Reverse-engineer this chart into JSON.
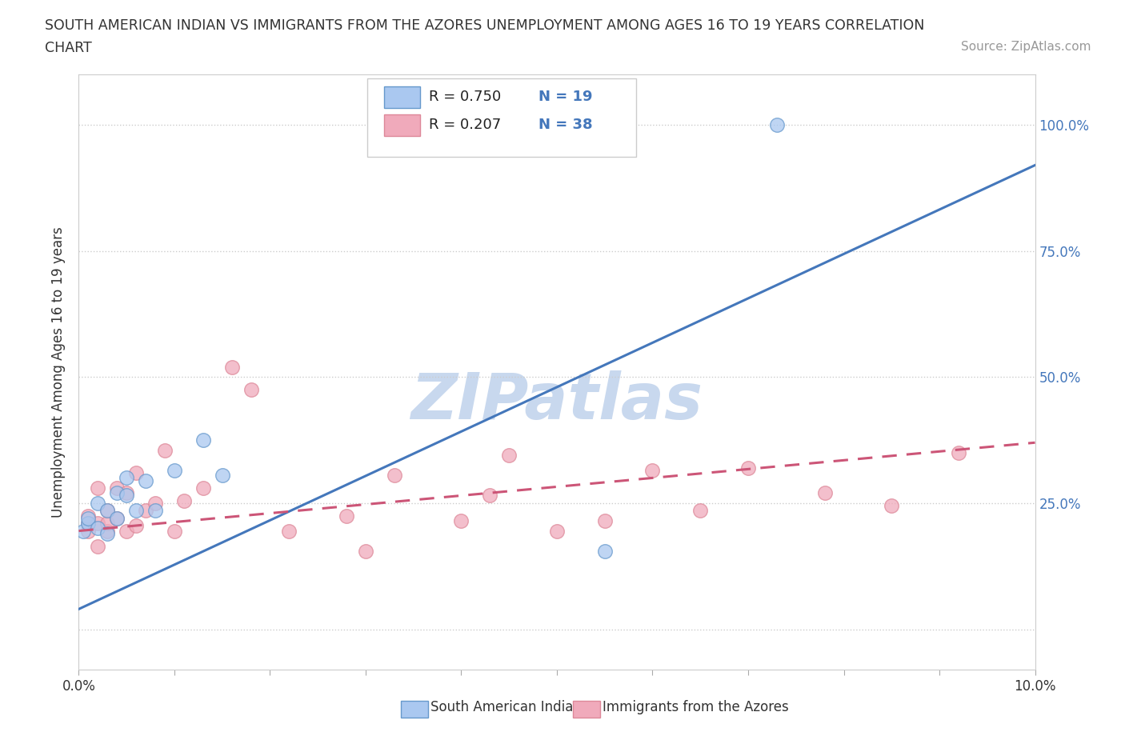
{
  "title_line1": "SOUTH AMERICAN INDIAN VS IMMIGRANTS FROM THE AZORES UNEMPLOYMENT AMONG AGES 16 TO 19 YEARS CORRELATION",
  "title_line2": "CHART",
  "source_text": "Source: ZipAtlas.com",
  "ylabel_text": "Unemployment Among Ages 16 to 19 years",
  "xlim": [
    0.0,
    0.1
  ],
  "ylim": [
    -0.08,
    1.1
  ],
  "x_ticks": [
    0.0,
    0.01,
    0.02,
    0.03,
    0.04,
    0.05,
    0.06,
    0.07,
    0.08,
    0.09,
    0.1
  ],
  "x_tick_labels": [
    "0.0%",
    "",
    "",
    "",
    "",
    "",
    "",
    "",
    "",
    "",
    "10.0%"
  ],
  "y_ticks": [
    0.0,
    0.25,
    0.5,
    0.75,
    1.0
  ],
  "y_tick_labels": [
    "",
    "25.0%",
    "50.0%",
    "75.0%",
    "100.0%"
  ],
  "grid_color": "#cccccc",
  "background_color": "#ffffff",
  "watermark_text": "ZIPatlas",
  "watermark_color": "#c8d8ee",
  "legend_r1": "R = 0.750",
  "legend_n1": "N = 19",
  "legend_r2": "R = 0.207",
  "legend_n2": "N = 38",
  "blue_color": "#aac8f0",
  "pink_color": "#f0aabb",
  "blue_line_color": "#4477bb",
  "pink_line_color": "#cc5577",
  "blue_edge_color": "#6699cc",
  "pink_edge_color": "#dd8899",
  "blue_scatter_x": [
    0.0005,
    0.001,
    0.001,
    0.002,
    0.002,
    0.003,
    0.003,
    0.004,
    0.004,
    0.005,
    0.005,
    0.006,
    0.007,
    0.008,
    0.01,
    0.013,
    0.015,
    0.055,
    0.073
  ],
  "blue_scatter_y": [
    0.195,
    0.21,
    0.22,
    0.2,
    0.25,
    0.19,
    0.235,
    0.27,
    0.22,
    0.265,
    0.3,
    0.235,
    0.295,
    0.235,
    0.315,
    0.375,
    0.305,
    0.155,
    1.0
  ],
  "pink_scatter_x": [
    0.001,
    0.001,
    0.001,
    0.002,
    0.002,
    0.002,
    0.003,
    0.003,
    0.003,
    0.004,
    0.004,
    0.005,
    0.005,
    0.006,
    0.006,
    0.007,
    0.008,
    0.009,
    0.01,
    0.011,
    0.013,
    0.016,
    0.018,
    0.022,
    0.028,
    0.03,
    0.033,
    0.04,
    0.043,
    0.045,
    0.05,
    0.055,
    0.06,
    0.065,
    0.07,
    0.078,
    0.085,
    0.092
  ],
  "pink_scatter_y": [
    0.195,
    0.21,
    0.225,
    0.165,
    0.21,
    0.28,
    0.195,
    0.21,
    0.235,
    0.22,
    0.28,
    0.195,
    0.27,
    0.205,
    0.31,
    0.235,
    0.25,
    0.355,
    0.195,
    0.255,
    0.28,
    0.52,
    0.475,
    0.195,
    0.225,
    0.155,
    0.305,
    0.215,
    0.265,
    0.345,
    0.195,
    0.215,
    0.315,
    0.235,
    0.32,
    0.27,
    0.245,
    0.35
  ],
  "blue_trend_x": [
    0.0,
    0.1
  ],
  "blue_trend_y": [
    0.04,
    0.92
  ],
  "pink_trend_x": [
    0.0,
    0.1
  ],
  "pink_trend_y": [
    0.195,
    0.37
  ]
}
